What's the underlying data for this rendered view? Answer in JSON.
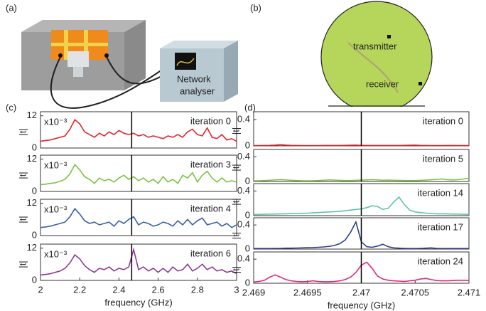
{
  "figure": {
    "panel_labels": [
      "(a)",
      "(b)",
      "(c)",
      "(d)"
    ],
    "analyser_label": [
      "Network",
      "analyser"
    ],
    "map_labels": [
      "transmitter",
      "receiver"
    ]
  },
  "chart_data": [
    {
      "type": "line",
      "annotation": "iteration 0",
      "multiplier": "x10⁻³",
      "ylabel": "|t|",
      "color": "#e0262b",
      "xlim": [
        2,
        3
      ],
      "ylim": [
        0,
        13.5
      ],
      "yticks": [
        0,
        12
      ],
      "marker_x": 2.465,
      "x": [
        2,
        2.025,
        2.05,
        2.075,
        2.1,
        2.125,
        2.15,
        2.175,
        2.2,
        2.225,
        2.25,
        2.275,
        2.3,
        2.325,
        2.35,
        2.375,
        2.4,
        2.425,
        2.45,
        2.475,
        2.5,
        2.525,
        2.55,
        2.575,
        2.6,
        2.625,
        2.65,
        2.675,
        2.7,
        2.725,
        2.75,
        2.775,
        2.8,
        2.825,
        2.85,
        2.875,
        2.9,
        2.925,
        2.95,
        2.975,
        3
      ],
      "values": [
        2.5,
        2.8,
        3,
        3.5,
        4,
        4.5,
        7,
        10.5,
        9,
        6,
        5,
        4,
        5.5,
        4.5,
        6,
        5,
        6.5,
        5.5,
        5,
        5.5,
        4.5,
        5,
        4,
        4.5,
        4,
        3.5,
        4.5,
        4,
        5,
        4,
        6,
        7,
        5,
        4.5,
        7.5,
        4,
        3.5,
        5,
        3,
        3.5,
        2.5
      ]
    },
    {
      "type": "line",
      "annotation": "iteration 3",
      "multiplier": "x10⁻³",
      "ylabel": "|t|",
      "color": "#7dc143",
      "xlim": [
        2,
        3
      ],
      "ylim": [
        0,
        13.5
      ],
      "yticks": [
        0,
        12
      ],
      "marker_x": 2.465,
      "x": [
        2,
        2.025,
        2.05,
        2.075,
        2.1,
        2.125,
        2.15,
        2.175,
        2.2,
        2.225,
        2.25,
        2.275,
        2.3,
        2.325,
        2.35,
        2.375,
        2.4,
        2.425,
        2.45,
        2.475,
        2.5,
        2.525,
        2.55,
        2.575,
        2.6,
        2.625,
        2.65,
        2.675,
        2.7,
        2.725,
        2.75,
        2.775,
        2.8,
        2.825,
        2.85,
        2.875,
        2.9,
        2.925,
        2.95,
        2.975,
        3
      ],
      "values": [
        2.5,
        2.7,
        3,
        3.2,
        3.8,
        4.5,
        6.5,
        10,
        8,
        5.5,
        4.5,
        3,
        5,
        4,
        4.5,
        3.5,
        5,
        6,
        4.5,
        5.5,
        4,
        5,
        3.5,
        4.5,
        3,
        5.5,
        3.5,
        4.5,
        3,
        6,
        5,
        7,
        3.5,
        6,
        7.5,
        5,
        3.5,
        5,
        3.5,
        4,
        3.5
      ]
    },
    {
      "type": "line",
      "annotation": "iteration 4",
      "multiplier": "x10⁻³",
      "ylabel": "|t|",
      "color": "#3a5fa8",
      "xlim": [
        2,
        3
      ],
      "ylim": [
        0,
        13.5
      ],
      "yticks": [
        0,
        12
      ],
      "marker_x": 2.465,
      "x": [
        2,
        2.025,
        2.05,
        2.075,
        2.1,
        2.125,
        2.15,
        2.175,
        2.2,
        2.225,
        2.25,
        2.275,
        2.3,
        2.325,
        2.35,
        2.375,
        2.4,
        2.425,
        2.45,
        2.475,
        2.5,
        2.525,
        2.55,
        2.575,
        2.6,
        2.625,
        2.65,
        2.675,
        2.7,
        2.725,
        2.75,
        2.775,
        2.8,
        2.825,
        2.85,
        2.875,
        2.9,
        2.925,
        2.95,
        2.975,
        3
      ],
      "values": [
        3,
        3.2,
        3.5,
        4,
        4.5,
        5,
        7,
        10,
        8,
        5.5,
        4.5,
        5,
        4,
        4.5,
        5,
        3.5,
        5.5,
        4.5,
        6,
        7,
        4,
        5,
        4.5,
        3.5,
        4,
        5,
        4.5,
        3.5,
        5.5,
        4,
        6,
        4,
        5.5,
        6.5,
        4,
        4.5,
        5,
        3.5,
        4.5,
        3,
        4
      ]
    },
    {
      "type": "line",
      "annotation": "iteration 6",
      "multiplier": "x10⁻³",
      "ylabel": "|t|",
      "color": "#8e3a96",
      "xlim": [
        2,
        3
      ],
      "ylim": [
        0,
        13.5
      ],
      "yticks": [
        0,
        12
      ],
      "marker_x": 2.465,
      "xticks": [
        2,
        2.2,
        2.4,
        2.6,
        2.8,
        3
      ],
      "xlabel": "frequency (GHz)",
      "x": [
        2,
        2.025,
        2.05,
        2.075,
        2.1,
        2.125,
        2.15,
        2.175,
        2.2,
        2.225,
        2.25,
        2.275,
        2.3,
        2.325,
        2.35,
        2.375,
        2.4,
        2.425,
        2.45,
        2.475,
        2.5,
        2.525,
        2.55,
        2.575,
        2.6,
        2.625,
        2.65,
        2.675,
        2.7,
        2.725,
        2.75,
        2.775,
        2.8,
        2.825,
        2.85,
        2.875,
        2.9,
        2.925,
        2.95,
        2.975,
        3
      ],
      "values": [
        2,
        2.2,
        2.5,
        3,
        3.5,
        4.5,
        6.5,
        9.5,
        8,
        5.5,
        4,
        3,
        4.5,
        4,
        5,
        3.5,
        4.5,
        4,
        5,
        11.5,
        4,
        5,
        3.5,
        4.5,
        3,
        4.5,
        3,
        5,
        3.5,
        4,
        6,
        3.5,
        4.5,
        6,
        4,
        5,
        3.5,
        4,
        3,
        3.5,
        2.5
      ]
    },
    {
      "type": "line",
      "annotation": "iteration 0",
      "ylabel": "|t|",
      "color": "#e0262b",
      "xlim": [
        2.469,
        2.471
      ],
      "ylim": [
        0,
        0.52
      ],
      "yticks": [
        0,
        0.4
      ],
      "marker_x": 2.47,
      "x": [
        2.469,
        2.46905,
        2.4691,
        2.46915,
        2.4692,
        2.46925,
        2.4693,
        2.46935,
        2.4694,
        2.46945,
        2.4695,
        2.46955,
        2.4696,
        2.46965,
        2.4697,
        2.46975,
        2.4698,
        2.46985,
        2.4699,
        2.46995,
        2.47,
        2.47005,
        2.4701,
        2.47015,
        2.4702,
        2.47025,
        2.4703,
        2.47035,
        2.4704,
        2.47045,
        2.4705,
        2.47055,
        2.4706,
        2.47065,
        2.4707,
        2.47075,
        2.4708,
        2.47085,
        2.4709,
        2.47095,
        2.471
      ],
      "values": [
        0.005,
        0.005,
        0.006,
        0.008,
        0.012,
        0.018,
        0.012,
        0.008,
        0.006,
        0.005,
        0.005,
        0.005,
        0.005,
        0.006,
        0.006,
        0.006,
        0.007,
        0.008,
        0.01,
        0.012,
        0.008,
        0.006,
        0.006,
        0.006,
        0.006,
        0.006,
        0.006,
        0.007,
        0.008,
        0.01,
        0.012,
        0.008,
        0.006,
        0.005,
        0.005,
        0.005,
        0.006,
        0.006,
        0.005,
        0.005,
        0.005
      ]
    },
    {
      "type": "line",
      "annotation": "iteration 5",
      "ylabel": "|t|",
      "color": "#7dc143",
      "xlim": [
        2.469,
        2.471
      ],
      "ylim": [
        0,
        0.52
      ],
      "yticks": [
        0,
        0.4
      ],
      "marker_x": 2.47,
      "x": [
        2.469,
        2.46905,
        2.4691,
        2.46915,
        2.4692,
        2.46925,
        2.4693,
        2.46935,
        2.4694,
        2.46945,
        2.4695,
        2.46955,
        2.4696,
        2.46965,
        2.4697,
        2.46975,
        2.4698,
        2.46985,
        2.4699,
        2.46995,
        2.47,
        2.47005,
        2.4701,
        2.47015,
        2.4702,
        2.47025,
        2.4703,
        2.47035,
        2.4704,
        2.47045,
        2.4705,
        2.47055,
        2.4706,
        2.47065,
        2.4707,
        2.47075,
        2.4708,
        2.47085,
        2.4709,
        2.47095,
        2.471
      ],
      "values": [
        0.01,
        0.012,
        0.015,
        0.02,
        0.025,
        0.03,
        0.025,
        0.02,
        0.015,
        0.012,
        0.012,
        0.012,
        0.015,
        0.02,
        0.025,
        0.022,
        0.018,
        0.015,
        0.015,
        0.02,
        0.022,
        0.025,
        0.03,
        0.025,
        0.02,
        0.022,
        0.02,
        0.018,
        0.015,
        0.015,
        0.015,
        0.018,
        0.022,
        0.028,
        0.035,
        0.04,
        0.03,
        0.025,
        0.03,
        0.04,
        0.05
      ]
    },
    {
      "type": "line",
      "annotation": "iteration 14",
      "ylabel": "|t|",
      "color": "#5fc5a3",
      "xlim": [
        2.469,
        2.471
      ],
      "ylim": [
        0,
        0.52
      ],
      "yticks": [
        0,
        0.4
      ],
      "marker_x": 2.47,
      "x": [
        2.469,
        2.46905,
        2.4691,
        2.46915,
        2.4692,
        2.46925,
        2.4693,
        2.46935,
        2.4694,
        2.46945,
        2.4695,
        2.46955,
        2.4696,
        2.46965,
        2.4697,
        2.46975,
        2.4698,
        2.46985,
        2.4699,
        2.46995,
        2.47,
        2.47005,
        2.4701,
        2.47015,
        2.4702,
        2.47025,
        2.4703,
        2.47035,
        2.4704,
        2.47045,
        2.4705,
        2.47055,
        2.4706,
        2.47065,
        2.4707,
        2.47075,
        2.4708,
        2.47085,
        2.4709,
        2.47095,
        2.471
      ],
      "values": [
        0.02,
        0.02,
        0.022,
        0.024,
        0.026,
        0.028,
        0.03,
        0.032,
        0.035,
        0.038,
        0.04,
        0.045,
        0.05,
        0.055,
        0.06,
        0.065,
        0.07,
        0.08,
        0.09,
        0.1,
        0.11,
        0.13,
        0.16,
        0.15,
        0.1,
        0.12,
        0.22,
        0.3,
        0.18,
        0.09,
        0.06,
        0.05,
        0.04,
        0.035,
        0.03,
        0.03,
        0.028,
        0.025,
        0.025,
        0.022,
        0.02
      ]
    },
    {
      "type": "line",
      "annotation": "iteration 17",
      "ylabel": "|t|",
      "color": "#2e3f8f",
      "xlim": [
        2.469,
        2.471
      ],
      "ylim": [
        0,
        0.52
      ],
      "yticks": [
        0,
        0.4
      ],
      "marker_x": 2.47,
      "x": [
        2.469,
        2.46905,
        2.4691,
        2.46915,
        2.4692,
        2.46925,
        2.4693,
        2.46935,
        2.4694,
        2.46945,
        2.4695,
        2.46955,
        2.4696,
        2.46965,
        2.4697,
        2.46975,
        2.4698,
        2.46985,
        2.4699,
        2.46995,
        2.47,
        2.47005,
        2.4701,
        2.47015,
        2.4702,
        2.47025,
        2.4703,
        2.47035,
        2.4704,
        2.47045,
        2.4705,
        2.47055,
        2.4706,
        2.47065,
        2.4707,
        2.47075,
        2.4708,
        2.47085,
        2.4709,
        2.47095,
        2.471
      ],
      "values": [
        0.01,
        0.01,
        0.01,
        0.01,
        0.012,
        0.012,
        0.015,
        0.015,
        0.018,
        0.02,
        0.022,
        0.025,
        0.03,
        0.035,
        0.045,
        0.06,
        0.09,
        0.15,
        0.28,
        0.45,
        0.12,
        0.04,
        0.03,
        0.05,
        0.08,
        0.04,
        0.02,
        0.015,
        0.012,
        0.01,
        0.01,
        0.012,
        0.015,
        0.02,
        0.012,
        0.01,
        0.01,
        0.01,
        0.01,
        0.01,
        0.01
      ]
    },
    {
      "type": "line",
      "annotation": "iteration 24",
      "ylabel": "|t|",
      "color": "#e4267f",
      "xlim": [
        2.469,
        2.471
      ],
      "ylim": [
        0,
        0.52
      ],
      "yticks": [
        0,
        0.4
      ],
      "marker_x": 2.47,
      "xticks": [
        2.469,
        2.4695,
        2.47,
        2.4705,
        2.471
      ],
      "xlabel": "frequency (GHz)",
      "x": [
        2.469,
        2.46905,
        2.4691,
        2.46915,
        2.4692,
        2.46925,
        2.4693,
        2.46935,
        2.4694,
        2.46945,
        2.4695,
        2.46955,
        2.4696,
        2.46965,
        2.4697,
        2.46975,
        2.4698,
        2.46985,
        2.4699,
        2.46995,
        2.47,
        2.47005,
        2.4701,
        2.47015,
        2.4702,
        2.47025,
        2.4703,
        2.47035,
        2.4704,
        2.47045,
        2.4705,
        2.47055,
        2.4706,
        2.47065,
        2.4707,
        2.47075,
        2.4708,
        2.47085,
        2.4709,
        2.47095,
        2.471
      ],
      "values": [
        0.02,
        0.03,
        0.05,
        0.1,
        0.14,
        0.1,
        0.06,
        0.04,
        0.03,
        0.025,
        0.03,
        0.04,
        0.03,
        0.025,
        0.025,
        0.03,
        0.04,
        0.06,
        0.1,
        0.18,
        0.3,
        0.35,
        0.25,
        0.12,
        0.07,
        0.05,
        0.04,
        0.035,
        0.03,
        0.04,
        0.05,
        0.07,
        0.08,
        0.06,
        0.045,
        0.04,
        0.04,
        0.045,
        0.05,
        0.05,
        0.045
      ]
    }
  ]
}
